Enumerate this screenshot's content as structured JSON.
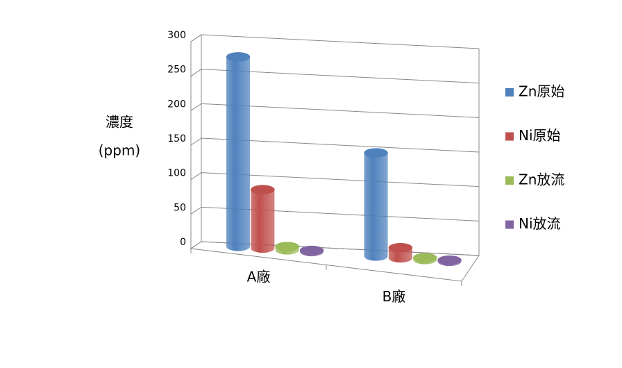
{
  "chart_data": {
    "type": "bar3d",
    "y_label": [
      "濃度",
      "(ppm)"
    ],
    "categories": [
      "A廠",
      "B廠"
    ],
    "series": [
      {
        "name": "Zn原始",
        "color": "#4f81bd",
        "values": [
          275,
          150
        ]
      },
      {
        "name": "Ni原始",
        "color": "#c0504d",
        "values": [
          85,
          15
        ]
      },
      {
        "name": "Zn放流",
        "color": "#9bbb59",
        "values": [
          5,
          3
        ]
      },
      {
        "name": "Ni放流",
        "color": "#8064a2",
        "values": [
          2,
          2
        ]
      }
    ],
    "ylim": [
      0,
      300
    ],
    "yticks": [
      0,
      50,
      100,
      150,
      200,
      250,
      300
    ],
    "grid": true,
    "legend": "right"
  }
}
